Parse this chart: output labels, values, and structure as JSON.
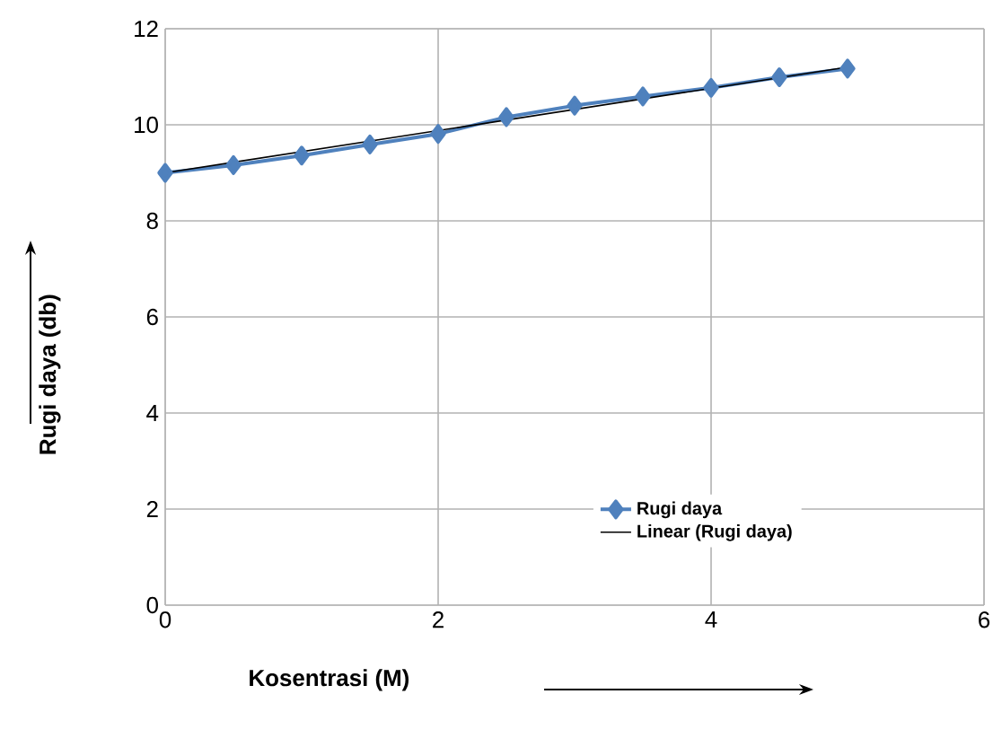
{
  "chart_data": {
    "type": "line",
    "xlabel": "Kosentrasi (M)",
    "ylabel": "Rugi daya (db)",
    "xlim": [
      0,
      6
    ],
    "xticks": [
      0,
      2,
      4,
      6
    ],
    "ylim": [
      0,
      12
    ],
    "yticks": [
      0,
      2,
      4,
      6,
      8,
      10,
      12
    ],
    "series": [
      {
        "name": "Rugi daya",
        "color": "#4f81bd",
        "marker": "diamond",
        "x": [
          0,
          0.5,
          1,
          1.5,
          2,
          2.5,
          3,
          3.5,
          4,
          4.5,
          5
        ],
        "values": [
          9.0,
          9.16,
          9.36,
          9.59,
          9.81,
          10.16,
          10.4,
          10.59,
          10.77,
          10.99,
          11.17
        ]
      },
      {
        "name": "Linear (Rugi daya)",
        "color": "#000000",
        "marker": "none",
        "x": [
          0,
          5
        ],
        "values": [
          9.0,
          11.2
        ]
      }
    ],
    "grid": true,
    "legend": "bottom"
  }
}
